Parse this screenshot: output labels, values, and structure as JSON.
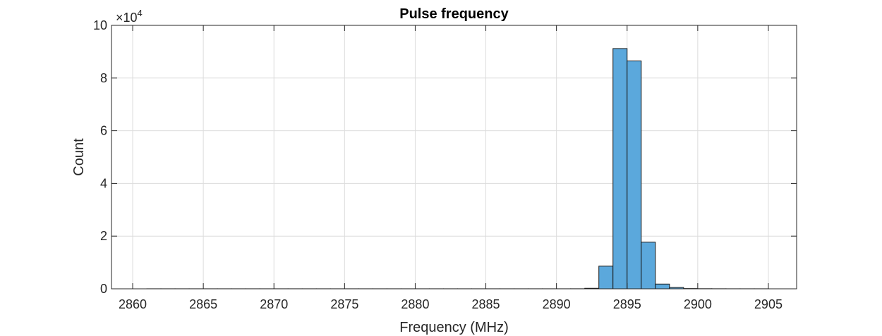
{
  "chart_data": {
    "type": "bar",
    "title": "Pulse frequency",
    "xlabel": "Frequency (MHz)",
    "ylabel": "Count",
    "y_multiplier": {
      "base": "×10",
      "exponent": "4"
    },
    "xlim": [
      2858.5,
      2907
    ],
    "ylim": [
      0,
      100000
    ],
    "xticks": [
      2860,
      2865,
      2870,
      2875,
      2880,
      2885,
      2890,
      2895,
      2900,
      2905
    ],
    "yticks": [
      0,
      20000,
      40000,
      60000,
      80000,
      100000
    ],
    "ytick_labels": [
      "0",
      "2",
      "4",
      "6",
      "8",
      "10"
    ],
    "bin_width": 1,
    "bin_edges_start": 2861,
    "counts": [
      20,
      20,
      20,
      20,
      20,
      20,
      20,
      20,
      20,
      20,
      20,
      20,
      20,
      20,
      20,
      20,
      20,
      20,
      20,
      20,
      20,
      20,
      20,
      20,
      20,
      20,
      20,
      20,
      20,
      20,
      30,
      200,
      8600,
      91200,
      86500,
      17700,
      1800,
      500,
      100,
      50,
      30,
      20,
      20,
      20
    ],
    "grid": true,
    "bar_color": "#5ba8dc",
    "edge_color": "#1a1a1a"
  }
}
